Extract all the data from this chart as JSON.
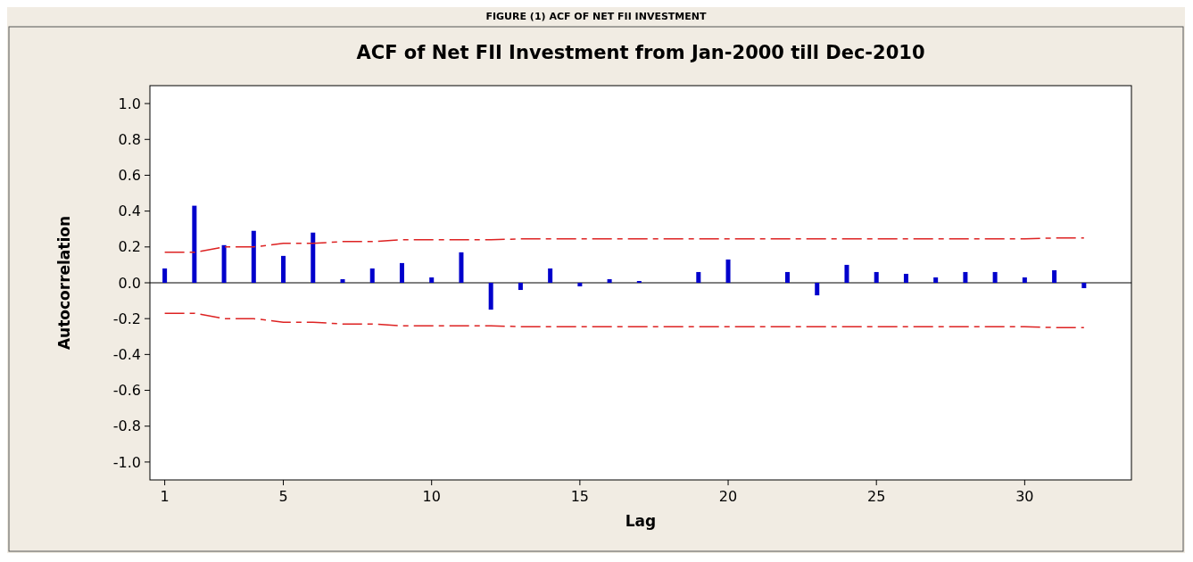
{
  "chart_data": {
    "type": "bar",
    "title": "ACF of Net FII Investment from Jan-2000 till Dec-2010",
    "xlabel": "Lag",
    "ylabel": "Autocorrelation",
    "annotations": [
      "FIGURE (1) ACF OF NET FII INVESTMENT"
    ],
    "x": [
      1,
      2,
      3,
      4,
      5,
      6,
      7,
      8,
      9,
      10,
      11,
      12,
      13,
      14,
      15,
      16,
      17,
      18,
      19,
      20,
      21,
      22,
      23,
      24,
      25,
      26,
      27,
      28,
      29,
      30,
      31,
      32
    ],
    "xlim": [
      0.5,
      33.6
    ],
    "xticks": [
      1,
      5,
      10,
      15,
      20,
      25,
      30
    ],
    "ylim": [
      -1.1,
      1.1
    ],
    "yticks": [
      {
        "value": -1,
        "label": "-1.0"
      },
      -0.8,
      -0.6,
      -0.4,
      -0.2,
      {
        "value": 0,
        "label": "0.0"
      },
      0.2,
      0.4,
      0.6,
      0.8,
      {
        "value": 1,
        "label": "1.0"
      }
    ],
    "series": [
      {
        "color": "#0000cc",
        "values": [
          0.08,
          0.43,
          0.21,
          0.29,
          0.15,
          0.28,
          0.02,
          0.08,
          0.11,
          0.03,
          0.17,
          -0.15,
          -0.04,
          0.08,
          -0.02,
          0.02,
          0.01,
          0,
          0.06,
          0.13,
          0,
          0.06,
          -0.07,
          0.1,
          0.06,
          0.05,
          0.03,
          0.06,
          0.06,
          0.03,
          0.07,
          -0.03
        ]
      },
      {
        "type": "line",
        "color": "#dd2222",
        "line_style": "dashed",
        "values": [
          0.17,
          0.17,
          0.2,
          0.2,
          0.22,
          0.22,
          0.23,
          0.23,
          0.24,
          0.24,
          0.24,
          0.24,
          0.245,
          0.245,
          0.245,
          0.245,
          0.245,
          0.245,
          0.245,
          0.245,
          0.245,
          0.245,
          0.245,
          0.245,
          0.245,
          0.245,
          0.245,
          0.245,
          0.245,
          0.245,
          0.25,
          0.25
        ]
      },
      {
        "type": "line",
        "color": "#dd2222",
        "line_style": "dashed",
        "values": [
          -0.17,
          -0.17,
          -0.2,
          -0.2,
          -0.22,
          -0.22,
          -0.23,
          -0.23,
          -0.24,
          -0.24,
          -0.24,
          -0.24,
          -0.245,
          -0.245,
          -0.245,
          -0.245,
          -0.245,
          -0.245,
          -0.245,
          -0.245,
          -0.245,
          -0.245,
          -0.245,
          -0.245,
          -0.245,
          -0.245,
          -0.245,
          -0.245,
          -0.245,
          -0.245,
          -0.25,
          -0.25
        ]
      }
    ]
  }
}
